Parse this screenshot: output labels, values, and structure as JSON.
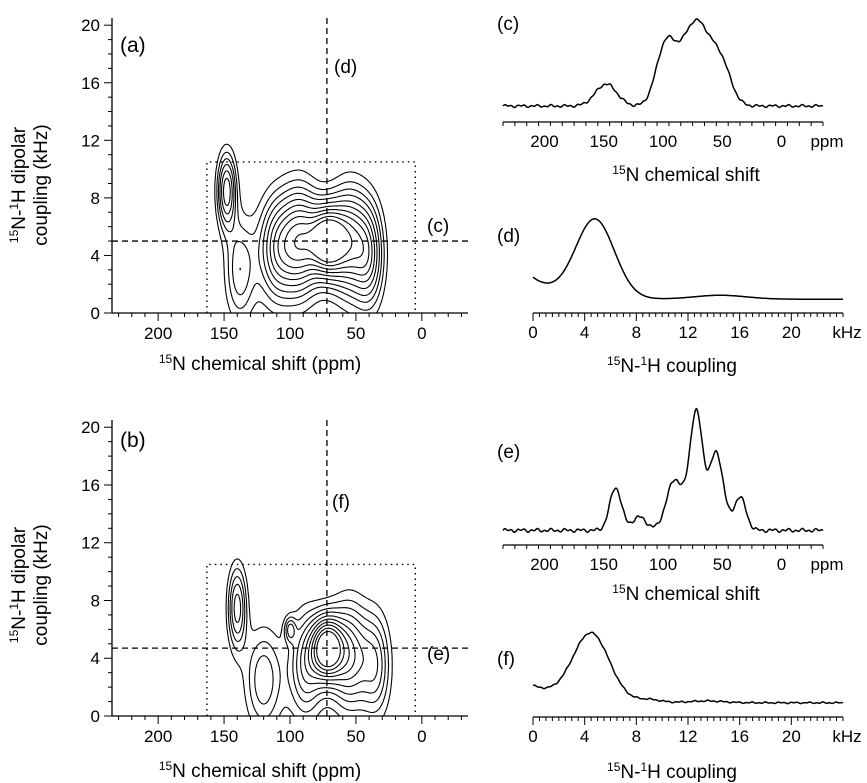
{
  "chart_data": [
    {
      "id": "a",
      "type": "contour",
      "panel_label": "(a)",
      "xlabel_prefix": "15",
      "xlabel_main": "N chemical shift (ppm)",
      "ylabel_line1_prefix": "15",
      "ylabel_line1_main": "N-",
      "ylabel_line1_sup": "1",
      "ylabel_line1_end": "H dipolar",
      "ylabel_line2": "coupling (kHz)",
      "x_ticks": [
        "200",
        "150",
        "100",
        "50",
        "0"
      ],
      "x_tick_values": [
        200,
        150,
        100,
        50,
        0
      ],
      "y_ticks": [
        "0",
        "4",
        "8",
        "12",
        "16",
        "20"
      ],
      "y_tick_values": [
        0,
        4,
        8,
        12,
        16,
        20
      ],
      "xlim": [
        235,
        -35
      ],
      "ylim": [
        0,
        20.5
      ],
      "cut_h": {
        "label": "(c)",
        "y": 5.0
      },
      "cut_v": {
        "label": "(d)",
        "x": 72
      },
      "box": {
        "x": [
          163,
          5
        ],
        "y": [
          0,
          10.5
        ]
      },
      "peaks": [
        {
          "x": 148,
          "y": 8.5,
          "sx": 5,
          "sy": 1.8,
          "a": 0.6
        },
        {
          "x": 138,
          "y": 3,
          "sx": 8,
          "sy": 2.5,
          "a": 0.35
        },
        {
          "x": 110,
          "y": 4.5,
          "sx": 10,
          "sy": 2.5,
          "a": 0.55
        },
        {
          "x": 92,
          "y": 5,
          "sx": 10,
          "sy": 2.5,
          "a": 0.75
        },
        {
          "x": 72,
          "y": 5,
          "sx": 9,
          "sy": 1.7,
          "a": 1.0
        },
        {
          "x": 55,
          "y": 5,
          "sx": 10,
          "sy": 2.5,
          "a": 0.7
        },
        {
          "x": 40,
          "y": 4,
          "sx": 8,
          "sy": 2.5,
          "a": 0.5
        }
      ]
    },
    {
      "id": "b",
      "type": "contour",
      "panel_label": "(b)",
      "xlabel_prefix": "15",
      "xlabel_main": "N chemical shift (ppm)",
      "ylabel_line1_prefix": "15",
      "ylabel_line1_main": "N-",
      "ylabel_line1_sup": "1",
      "ylabel_line1_end": "H dipolar",
      "ylabel_line2": "coupling (kHz)",
      "x_ticks": [
        "200",
        "150",
        "100",
        "50",
        "0"
      ],
      "x_tick_values": [
        200,
        150,
        100,
        50,
        0
      ],
      "y_ticks": [
        "0",
        "4",
        "8",
        "12",
        "16",
        "20"
      ],
      "y_tick_values": [
        0,
        4,
        8,
        12,
        16,
        20
      ],
      "xlim": [
        235,
        -35
      ],
      "ylim": [
        0,
        20.5
      ],
      "cut_h": {
        "label": "(e)",
        "y": 4.7
      },
      "cut_v": {
        "label": "(f)",
        "x": 72
      },
      "box": {
        "x": [
          163,
          5
        ],
        "y": [
          0,
          10.5
        ]
      },
      "peaks": [
        {
          "x": 140,
          "y": 7.5,
          "sx": 5,
          "sy": 2,
          "a": 0.5
        },
        {
          "x": 120,
          "y": 2.5,
          "sx": 10,
          "sy": 2.5,
          "a": 0.35
        },
        {
          "x": 100,
          "y": 6,
          "sx": 3,
          "sy": 0.6,
          "a": 0.3
        },
        {
          "x": 88,
          "y": 3.5,
          "sx": 9,
          "sy": 2.5,
          "a": 0.45
        },
        {
          "x": 72,
          "y": 4.7,
          "sx": 8,
          "sy": 1.5,
          "a": 1.0
        },
        {
          "x": 55,
          "y": 4.2,
          "sx": 10,
          "sy": 2.5,
          "a": 0.6
        },
        {
          "x": 35,
          "y": 3.5,
          "sx": 8,
          "sy": 2.5,
          "a": 0.4
        }
      ]
    },
    {
      "id": "c",
      "type": "line",
      "panel_label": "(c)",
      "xlabel_prefix": "15",
      "xlabel_main": "N chemical shift",
      "x_ticks": [
        "200",
        "150",
        "100",
        "50",
        "0"
      ],
      "x_tick_values": [
        200,
        150,
        100,
        50,
        0
      ],
      "x_unit": "ppm",
      "xlim": [
        235,
        -35
      ],
      "minor_step": 10,
      "baseline": 0.12,
      "noise": 0.015,
      "peaks": [
        {
          "x": 148,
          "w": 9,
          "a": 0.22
        },
        {
          "x": 98,
          "w": 8,
          "a": 0.55
        },
        {
          "x": 72,
          "w": 13,
          "a": 0.85
        },
        {
          "x": 50,
          "w": 8,
          "a": 0.3
        }
      ]
    },
    {
      "id": "d",
      "type": "line",
      "panel_label": "(d)",
      "xlabel_prefix": "15",
      "xlabel_main": "N-",
      "xlabel_sup": "1",
      "xlabel_end": "H coupling",
      "x_ticks": [
        "0",
        "4",
        "8",
        "12",
        "16",
        "20"
      ],
      "x_tick_values": [
        0,
        4,
        8,
        12,
        16,
        20
      ],
      "x_unit": "kHz",
      "xlim": [
        0,
        24
      ],
      "minor_step": 0.5,
      "baseline": 0.1,
      "noise": 0.0,
      "decay": {
        "a": 0.22,
        "tau": 2.0
      },
      "peaks": [
        {
          "x": 4.8,
          "w": 1.5,
          "a": 0.8
        },
        {
          "x": 14.5,
          "w": 2.0,
          "a": 0.04
        }
      ]
    },
    {
      "id": "e",
      "type": "line",
      "panel_label": "(e)",
      "xlabel_prefix": "15",
      "xlabel_main": "N chemical shift",
      "x_ticks": [
        "200",
        "150",
        "100",
        "50",
        "0"
      ],
      "x_tick_values": [
        200,
        150,
        100,
        50,
        0
      ],
      "x_unit": "ppm",
      "xlim": [
        235,
        -35
      ],
      "minor_step": 10,
      "baseline": 0.08,
      "noise": 0.015,
      "peaks": [
        {
          "x": 140,
          "w": 5,
          "a": 0.32
        },
        {
          "x": 120,
          "w": 6,
          "a": 0.1
        },
        {
          "x": 90,
          "w": 7,
          "a": 0.38
        },
        {
          "x": 72,
          "w": 5.5,
          "a": 0.88
        },
        {
          "x": 55,
          "w": 6,
          "a": 0.58
        },
        {
          "x": 35,
          "w": 5,
          "a": 0.25
        }
      ]
    },
    {
      "id": "f",
      "type": "line",
      "panel_label": "(f)",
      "xlabel_prefix": "15",
      "xlabel_main": "N-",
      "xlabel_sup": "1",
      "xlabel_end": "H coupling",
      "x_ticks": [
        "0",
        "4",
        "8",
        "12",
        "16",
        "20"
      ],
      "x_tick_values": [
        0,
        4,
        8,
        12,
        16,
        20
      ],
      "x_unit": "kHz",
      "xlim": [
        0,
        24
      ],
      "minor_step": 0.5,
      "baseline": 0.12,
      "noise": 0.01,
      "decay": {
        "a": 0.2,
        "tau": 3.0
      },
      "peaks": [
        {
          "x": 4.5,
          "w": 1.4,
          "a": 0.78
        },
        {
          "x": 9.0,
          "w": 0.8,
          "a": 0.03
        },
        {
          "x": 13.5,
          "w": 1.2,
          "a": 0.02
        }
      ]
    }
  ]
}
